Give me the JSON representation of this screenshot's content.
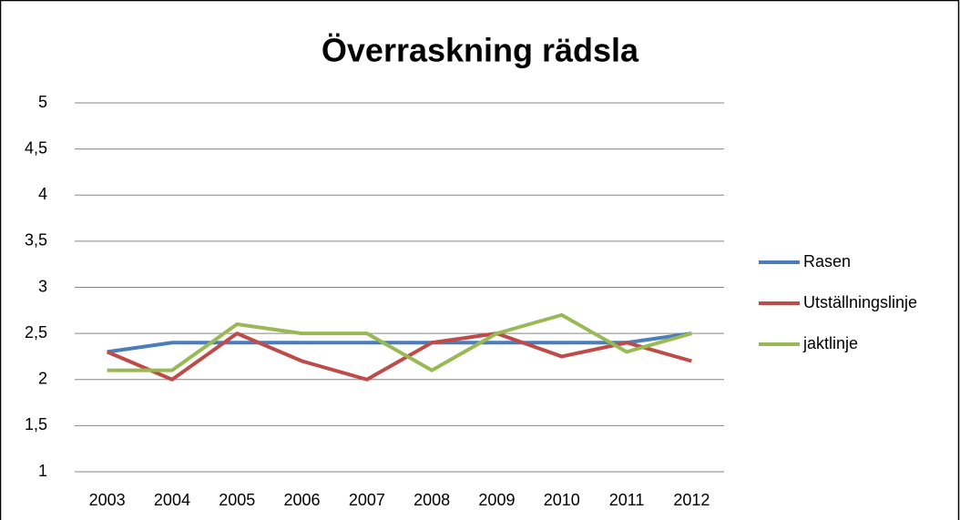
{
  "chart_data": {
    "type": "line",
    "title": "Överraskning rädsla",
    "categories": [
      "2003",
      "2004",
      "2005",
      "2006",
      "2007",
      "2008",
      "2009",
      "2010",
      "2011",
      "2012"
    ],
    "series": [
      {
        "name": "Rasen",
        "color": "#4a7ebb",
        "values": [
          2.3,
          2.4,
          2.4,
          2.4,
          2.4,
          2.4,
          2.4,
          2.4,
          2.4,
          2.5
        ]
      },
      {
        "name": "Utställningslinje",
        "color": "#be4b48",
        "values": [
          2.3,
          2.0,
          2.5,
          2.2,
          2.0,
          2.4,
          2.5,
          2.25,
          2.4,
          2.2
        ]
      },
      {
        "name": "jaktlinje",
        "color": "#98b954",
        "values": [
          2.1,
          2.1,
          2.6,
          2.5,
          2.5,
          2.1,
          2.5,
          2.7,
          2.3,
          2.5
        ]
      }
    ],
    "ylim": [
      1,
      5
    ],
    "yticks": [
      1,
      {
        "value": 1.5,
        "label": "1,5"
      },
      2,
      {
        "value": 2.5,
        "label": "2,5"
      },
      3,
      {
        "value": 3.5,
        "label": "3,5"
      },
      4,
      {
        "value": 4.5,
        "label": "4,5"
      },
      5
    ],
    "grid": true,
    "legend": "right"
  }
}
